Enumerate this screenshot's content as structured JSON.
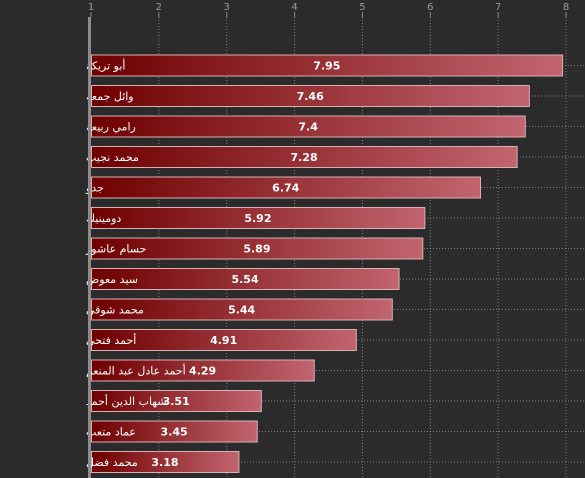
{
  "chart_data": {
    "type": "bar",
    "orientation": "horizontal",
    "categories": [
      "أبو تريكة",
      "وائل جمعة",
      "رامي ربيعة",
      "محمد نجيب",
      "جدو",
      "دومينيك",
      "حسام عاشور",
      "سيد معوض",
      "محمد شوقي",
      "أحمد فتحي",
      "أحمد عادل عبد المنعم",
      "شهاب الدين أحمد",
      "عماد متعب",
      "محمد فضل"
    ],
    "values": [
      7.95,
      7.46,
      7.4,
      7.28,
      6.74,
      5.92,
      5.89,
      5.54,
      5.44,
      4.91,
      4.29,
      3.51,
      3.45,
      3.18
    ],
    "value_labels": [
      "7.95",
      "7.46",
      "7.4",
      "7.28",
      "6.74",
      "5.92",
      "5.89",
      "5.54",
      "5.44",
      "4.91",
      "4.29",
      "3.51",
      "3.45",
      "3.18"
    ],
    "x_ticks": [
      "1",
      "2",
      "3",
      "4",
      "5",
      "6",
      "7",
      "8"
    ],
    "xlim": [
      1,
      8
    ],
    "axis_position": "top",
    "grid": true,
    "title": "",
    "xlabel": "",
    "ylabel": "",
    "colors": {
      "background": "#2b2b2b",
      "bar_start": "#6e0000",
      "bar_end": "#c2656f",
      "bar_border": "#d9b0b4",
      "grid": "#a5a5a5",
      "axis": "#8c8c8c",
      "label": "#ffffff",
      "tick": "#9a9a9a"
    }
  }
}
